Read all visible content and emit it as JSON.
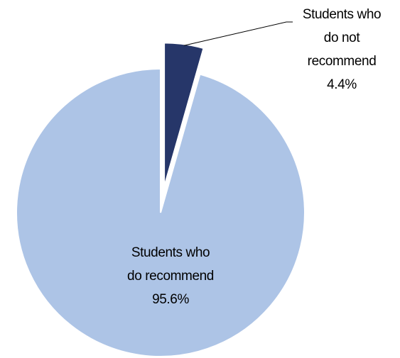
{
  "chart_data": {
    "type": "pie",
    "categories": [
      "Students who do not recommend",
      "Students who do recommend"
    ],
    "values": [
      4.4,
      95.6
    ],
    "value_labels": [
      "4.4%",
      "95.6%"
    ],
    "colors": [
      "#263669",
      "#adc4e6"
    ]
  }
}
